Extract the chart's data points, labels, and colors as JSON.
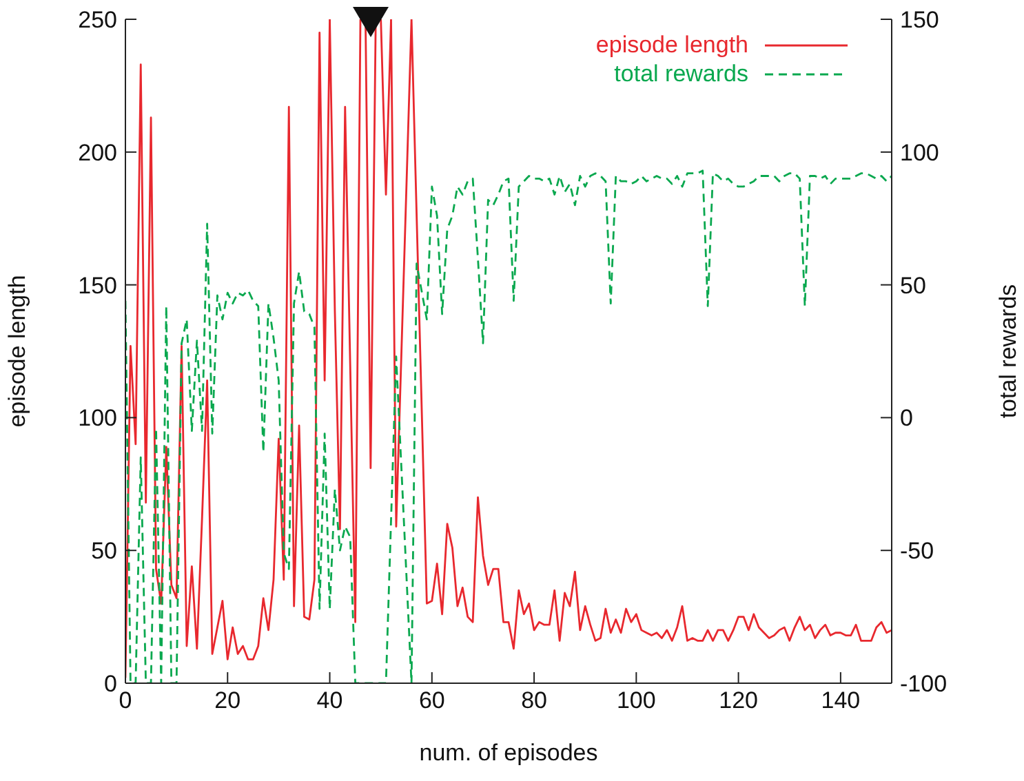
{
  "chart_data": {
    "type": "line",
    "xlabel": "num. of episodes",
    "ylabel": "episode length",
    "y2label": "total rewards",
    "xlim": [
      0,
      150
    ],
    "xticks": [
      0,
      20,
      40,
      60,
      80,
      100,
      120,
      140
    ],
    "ylim": [
      0,
      250
    ],
    "yticks": [
      0,
      50,
      100,
      150,
      200,
      250
    ],
    "y2lim": [
      -100,
      150
    ],
    "y2ticks": [
      -100,
      -50,
      0,
      50,
      100,
      150
    ],
    "legend": "top right",
    "series": [
      {
        "name": "episode length",
        "color": "#e8282e",
        "line_style": "solid",
        "x": [
          0,
          1,
          2,
          3,
          4,
          5,
          6,
          7,
          8,
          9,
          10,
          11,
          12,
          13,
          14,
          15,
          16,
          17,
          18,
          19,
          20,
          21,
          22,
          23,
          24,
          25,
          26,
          27,
          28,
          29,
          30,
          31,
          32,
          33,
          34,
          35,
          36,
          37,
          38,
          39,
          40,
          41,
          42,
          43,
          44,
          45,
          46,
          47,
          48,
          49,
          50,
          51,
          52,
          53,
          56,
          59,
          60,
          61,
          62,
          63,
          64,
          65,
          66,
          67,
          68,
          69,
          70,
          71,
          72,
          73,
          74,
          75,
          76,
          77,
          78,
          79,
          80,
          81,
          82,
          83,
          84,
          85,
          86,
          87,
          88,
          89,
          90,
          91,
          92,
          93,
          94,
          95,
          96,
          97,
          98,
          99,
          100,
          101,
          102,
          103,
          104,
          105,
          106,
          107,
          108,
          109,
          110,
          111,
          112,
          113,
          114,
          115,
          116,
          117,
          118,
          119,
          120,
          121,
          122,
          123,
          124,
          125,
          126,
          127,
          128,
          129,
          130,
          131,
          132,
          133,
          134,
          135,
          136,
          137,
          138,
          139,
          140,
          141,
          142,
          143,
          144,
          145,
          146,
          147,
          148,
          149,
          150
        ],
        "values": [
          2,
          127,
          90,
          233,
          68,
          213,
          43,
          30,
          89,
          37,
          32,
          127,
          14,
          44,
          13,
          62,
          114,
          11,
          21,
          31,
          9,
          21,
          11,
          14,
          9,
          9,
          14,
          32,
          20,
          39,
          92,
          39,
          217,
          29,
          97,
          25,
          24,
          39,
          245,
          114,
          250,
          140,
          58,
          217,
          120,
          23,
          250,
          250,
          81,
          250,
          250,
          184,
          250,
          59,
          250,
          30,
          31,
          45,
          26,
          60,
          51,
          29,
          36,
          25,
          23,
          70,
          48,
          37,
          43,
          43,
          23,
          23,
          13,
          35,
          26,
          30,
          20,
          23,
          22,
          22,
          35,
          16,
          34,
          29,
          42,
          20,
          29,
          22,
          16,
          17,
          28,
          19,
          24,
          19,
          28,
          23,
          26,
          20,
          19,
          18,
          19,
          17,
          20,
          16,
          21,
          29,
          16,
          17,
          16,
          16,
          20,
          16,
          20,
          20,
          16,
          20,
          25,
          25,
          20,
          26,
          21,
          19,
          17,
          18,
          20,
          21,
          16,
          21,
          25,
          20,
          22,
          17,
          20,
          22,
          18,
          19,
          19,
          18,
          18,
          22,
          16,
          16,
          16,
          21,
          23,
          19,
          20
        ]
      },
      {
        "name": "total rewards",
        "color": "#0aa84f",
        "line_style": "dashed",
        "axis": "y2",
        "x": [
          0,
          1,
          2,
          3,
          4,
          5,
          6,
          7,
          8,
          9,
          10,
          11,
          12,
          13,
          14,
          15,
          16,
          17,
          18,
          19,
          20,
          21,
          22,
          23,
          24,
          25,
          26,
          27,
          28,
          29,
          30,
          31,
          32,
          33,
          34,
          35,
          36,
          37,
          38,
          39,
          40,
          41,
          42,
          43,
          44,
          45,
          46,
          50,
          51,
          53,
          56,
          57,
          59,
          60,
          61,
          62,
          63,
          64,
          65,
          66,
          67,
          68,
          69,
          70,
          71,
          72,
          73,
          74,
          75,
          76,
          77,
          78,
          79,
          80,
          81,
          82,
          83,
          84,
          85,
          86,
          87,
          88,
          89,
          90,
          91,
          92,
          93,
          94,
          95,
          96,
          97,
          98,
          99,
          100,
          101,
          102,
          103,
          104,
          105,
          106,
          107,
          108,
          109,
          110,
          111,
          112,
          113,
          114,
          115,
          116,
          117,
          118,
          119,
          120,
          121,
          122,
          123,
          124,
          125,
          126,
          127,
          128,
          129,
          130,
          131,
          132,
          133,
          134,
          135,
          136,
          137,
          138,
          139,
          140,
          141,
          142,
          143,
          144,
          145,
          146,
          147,
          148,
          149,
          150
        ],
        "values": [
          44,
          -100,
          -100,
          -15,
          -100,
          -100,
          -4,
          -100,
          42,
          -100,
          -100,
          28,
          37,
          -5,
          29,
          -5,
          73,
          -6,
          46,
          37,
          47,
          43,
          47,
          46,
          48,
          44,
          42,
          -13,
          43,
          30,
          14,
          -51,
          -57,
          43,
          55,
          40,
          39,
          34,
          -72,
          -6,
          -72,
          -27,
          -50,
          -41,
          -45,
          -100,
          -100,
          -100,
          -100,
          23,
          -100,
          58,
          37,
          87,
          76,
          39,
          71,
          76,
          87,
          84,
          89,
          90,
          60,
          28,
          82,
          80,
          84,
          89,
          90,
          44,
          87,
          89,
          91,
          90,
          90,
          89,
          90,
          84,
          91,
          85,
          88,
          80,
          91,
          87,
          91,
          92,
          91,
          89,
          43,
          91,
          89,
          89,
          88,
          89,
          91,
          89,
          90,
          91,
          90,
          90,
          88,
          91,
          87,
          92,
          92,
          92,
          93,
          42,
          92,
          91,
          89,
          90,
          88,
          87,
          87,
          88,
          89,
          91,
          91,
          91,
          91,
          89,
          91,
          92,
          92,
          90,
          42,
          91,
          91,
          90,
          91,
          88,
          90,
          90,
          90,
          90,
          91,
          92,
          92,
          91,
          90,
          91,
          89,
          91
        ]
      }
    ]
  }
}
